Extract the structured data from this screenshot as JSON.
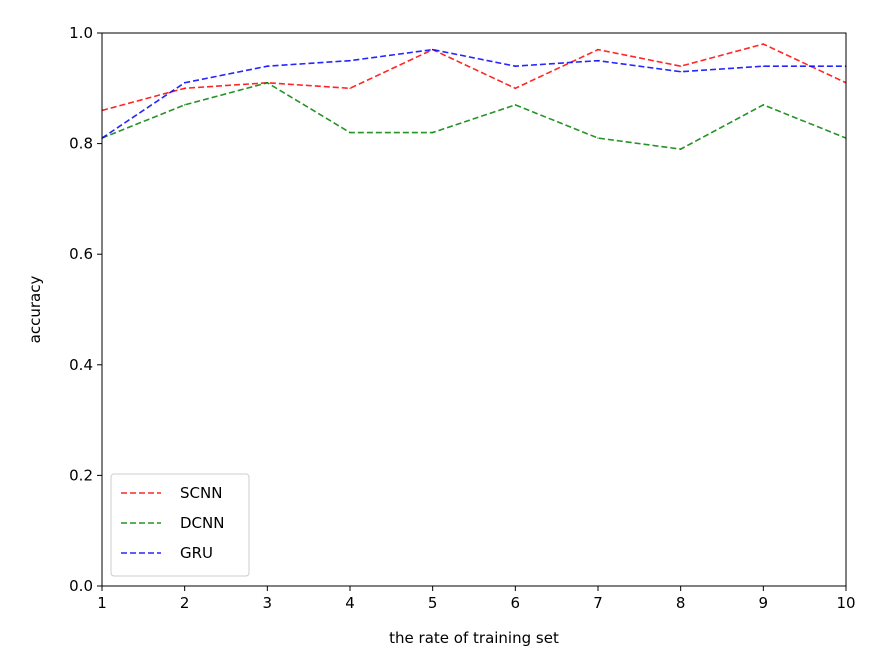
{
  "chart_data": {
    "type": "line",
    "xlabel": "the rate of training set",
    "ylabel": "accuracy",
    "x": [
      1,
      2,
      3,
      4,
      5,
      6,
      7,
      8,
      9,
      10
    ],
    "xlim": [
      1,
      10
    ],
    "ylim": [
      0.0,
      1.0
    ],
    "xticks": [
      "1",
      "2",
      "3",
      "4",
      "5",
      "6",
      "7",
      "8",
      "9",
      "10"
    ],
    "yticks": [
      "0.0",
      "0.2",
      "0.4",
      "0.6",
      "0.8",
      "1.0"
    ],
    "grid": false,
    "legend_position": "lower-left",
    "series": [
      {
        "name": "SCNN",
        "color": "#ff0000",
        "values": [
          0.86,
          0.9,
          0.91,
          0.9,
          0.97,
          0.9,
          0.97,
          0.94,
          0.98,
          0.91
        ]
      },
      {
        "name": "DCNN",
        "color": "#008000",
        "values": [
          0.81,
          0.87,
          0.91,
          0.82,
          0.82,
          0.87,
          0.81,
          0.79,
          0.87,
          0.81
        ]
      },
      {
        "name": "GRU",
        "color": "#0000ff",
        "values": [
          0.81,
          0.91,
          0.94,
          0.95,
          0.97,
          0.94,
          0.95,
          0.93,
          0.94,
          0.94
        ]
      }
    ]
  }
}
